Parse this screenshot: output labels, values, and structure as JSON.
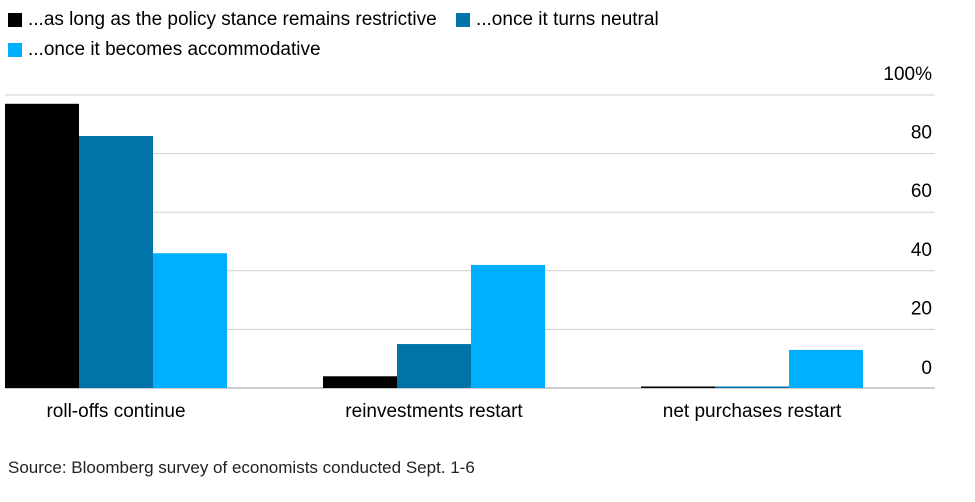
{
  "chart_data": {
    "type": "bar",
    "categories": [
      "roll-offs continue",
      "reinvestments restart",
      "net purchases restart"
    ],
    "series": [
      {
        "name": "...as long as the policy stance remains restrictive",
        "color": "#000000",
        "values": [
          97,
          4,
          0
        ]
      },
      {
        "name": "...once it turns neutral",
        "color": "#0073a8",
        "values": [
          86,
          15,
          0
        ]
      },
      {
        "name": "...once it becomes accommodative",
        "color": "#00b0ff",
        "values": [
          46,
          42,
          13
        ]
      }
    ],
    "ylim": [
      0,
      100
    ],
    "yticks": [
      {
        "value": 0,
        "label": "0"
      },
      {
        "value": 20,
        "label": "20"
      },
      {
        "value": 40,
        "label": "40"
      },
      {
        "value": 60,
        "label": "60"
      },
      {
        "value": 80,
        "label": "80"
      },
      {
        "value": 100,
        "label": "100%"
      }
    ],
    "axis_position": "right",
    "grid": true,
    "legend_position": "top-left",
    "source": "Source: Bloomberg survey of economists conducted Sept. 1-6"
  }
}
